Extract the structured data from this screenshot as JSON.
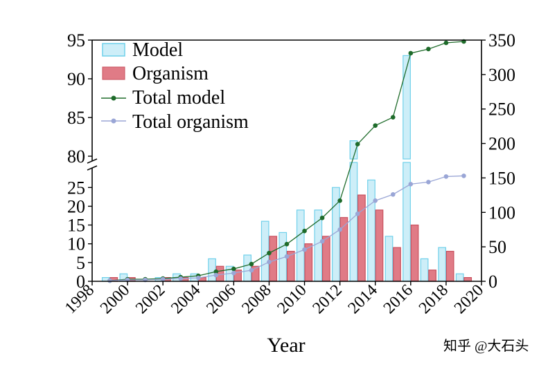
{
  "chart_data": {
    "type": "bar",
    "title": "",
    "xlabel": "Year",
    "ylabel_left": "",
    "ylabel_right": "",
    "x": [
      1999,
      2000,
      2001,
      2002,
      2003,
      2004,
      2005,
      2006,
      2007,
      2008,
      2009,
      2010,
      2011,
      2012,
      2013,
      2014,
      2015,
      2016,
      2017,
      2018,
      2019
    ],
    "xlim": [
      1998,
      2020
    ],
    "x_ticks": [
      "1998",
      "2000",
      "2002",
      "2004",
      "2006",
      "2008",
      "2010",
      "2012",
      "2014",
      "2016",
      "2018",
      "2020"
    ],
    "left_axis": {
      "broken": true,
      "lower_range": [
        0,
        28
      ],
      "upper_range": [
        80,
        95
      ],
      "lower_ticks": [
        "0",
        "5",
        "10",
        "15",
        "20",
        "25"
      ],
      "upper_ticks": [
        "80",
        "85",
        "90",
        "95"
      ]
    },
    "right_axis": {
      "range": [
        0,
        350
      ],
      "ticks": [
        "0",
        "50",
        "100",
        "150",
        "200",
        "250",
        "300",
        "350"
      ]
    },
    "series": [
      {
        "name": "Model",
        "kind": "bar",
        "axis": "left",
        "color": "#cdeef8",
        "edge_color": "#6fd0ea",
        "values": [
          1,
          2,
          0,
          1,
          2,
          2,
          6,
          4,
          7,
          16,
          13,
          19,
          19,
          25,
          82,
          27,
          12,
          93,
          6,
          9,
          2
        ]
      },
      {
        "name": "Organism",
        "kind": "bar",
        "axis": "left",
        "color": "#e07b86",
        "edge_color": "#c8505e",
        "values": [
          1,
          1,
          0,
          1,
          1,
          1,
          4,
          3,
          4,
          12,
          8,
          10,
          12,
          17,
          23,
          19,
          9,
          15,
          3,
          8,
          1
        ]
      },
      {
        "name": "Total model",
        "kind": "line",
        "axis": "right",
        "color": "#1e6b2a",
        "values": [
          1,
          3,
          3,
          4,
          6,
          8,
          14,
          18,
          25,
          41,
          54,
          73,
          92,
          117,
          199,
          226,
          238,
          331,
          337,
          346,
          348
        ]
      },
      {
        "name": "Total organism",
        "kind": "line",
        "axis": "right",
        "color": "#9aa6d6",
        "values": [
          1,
          2,
          2,
          3,
          4,
          5,
          9,
          12,
          16,
          28,
          36,
          46,
          58,
          75,
          98,
          117,
          126,
          141,
          144,
          152,
          153
        ]
      }
    ],
    "legend": {
      "position": "top-left",
      "entries": [
        "Model",
        "Organism",
        "Total model",
        "Total organism"
      ]
    }
  },
  "watermark": "知乎 @大石头"
}
